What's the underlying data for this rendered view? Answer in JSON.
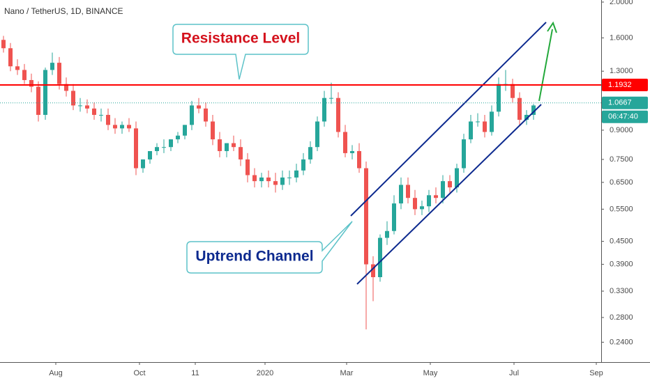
{
  "chart_data": {
    "type": "candlestick",
    "title": "Nano / TetherUS, 1D, BINANCE",
    "log_scale": true,
    "up_color": "#26a69a",
    "down_color": "#ef5350",
    "xlim": [
      -0.5,
      85.7
    ],
    "xticks": [
      {
        "value": 7.5,
        "label": "Aug"
      },
      {
        "value": 19.5,
        "label": "Oct"
      },
      {
        "value": 27.5,
        "label": "11"
      },
      {
        "value": 37.5,
        "label": "2020"
      },
      {
        "value": 49.2,
        "label": "Mar"
      },
      {
        "value": 61.2,
        "label": "May"
      },
      {
        "value": 73.2,
        "label": "Jul"
      },
      {
        "value": 85,
        "label": "Sep"
      }
    ],
    "ylim": [
      0.212,
      2.026
    ],
    "yticks": [
      {
        "value": 2,
        "label": "2.0000"
      },
      {
        "value": 1.6,
        "label": "1.6000"
      },
      {
        "value": 1.3,
        "label": "1.3000"
      },
      {
        "value": 0.9,
        "label": "0.9000"
      },
      {
        "value": 0.75,
        "label": "0.7500"
      },
      {
        "value": 0.65,
        "label": "0.6500"
      },
      {
        "value": 0.55,
        "label": "0.5500"
      },
      {
        "value": 0.45,
        "label": "0.4500"
      },
      {
        "value": 0.39,
        "label": "0.3900"
      },
      {
        "value": 0.33,
        "label": "0.3300"
      },
      {
        "value": 0.28,
        "label": "0.2800"
      },
      {
        "value": 0.24,
        "label": "0.2400"
      }
    ],
    "candles": {
      "open": [
        1.58,
        1.5,
        1.34,
        1.31,
        1.23,
        1.18,
        0.99,
        1.31,
        1.37,
        1.2,
        1.15,
        1.05,
        1.05,
        1.03,
        0.99,
        0.99,
        0.93,
        0.91,
        0.93,
        0.91,
        0.71,
        0.75,
        0.79,
        0.81,
        0.81,
        0.85,
        0.87,
        0.93,
        1.05,
        1.03,
        0.95,
        0.85,
        0.79,
        0.83,
        0.81,
        0.75,
        0.68,
        0.655,
        0.67,
        0.655,
        0.64,
        0.67,
        0.67,
        0.7,
        0.75,
        0.81,
        0.95,
        1.1,
        1.1,
        0.89,
        0.78,
        0.79,
        0.71,
        0.39,
        0.36,
        0.46,
        0.48,
        0.57,
        0.64,
        0.59,
        0.55,
        0.56,
        0.6,
        0.59,
        0.655,
        0.63,
        0.71,
        0.85,
        0.95,
        0.95,
        0.89,
        1.01,
        1.2,
        1.2,
        1.1,
        0.96,
        0.99
      ],
      "high": [
        1.62,
        1.55,
        1.4,
        1.36,
        1.28,
        1.22,
        1.33,
        1.46,
        1.42,
        1.25,
        1.2,
        1.1,
        1.09,
        1.07,
        1.03,
        1.03,
        0.97,
        0.95,
        0.97,
        0.95,
        0.75,
        0.79,
        0.83,
        0.85,
        0.85,
        0.89,
        0.93,
        1.08,
        1.1,
        1.07,
        0.99,
        0.89,
        0.83,
        0.87,
        0.85,
        0.78,
        0.71,
        0.69,
        0.7,
        0.69,
        0.7,
        0.7,
        0.73,
        0.78,
        0.84,
        0.98,
        1.15,
        1.21,
        1.14,
        0.93,
        0.82,
        0.83,
        0.74,
        0.41,
        0.47,
        0.51,
        0.6,
        0.67,
        0.67,
        0.62,
        0.58,
        0.62,
        0.63,
        0.68,
        0.68,
        0.73,
        0.88,
        0.99,
        1.0,
        0.99,
        1.05,
        1.25,
        1.31,
        1.24,
        1.14,
        1.02,
        1.06
      ],
      "low": [
        1.46,
        1.3,
        1.27,
        1.2,
        1.14,
        0.95,
        0.96,
        1.27,
        1.16,
        1.11,
        1.02,
        1.01,
        1.0,
        0.96,
        0.95,
        0.9,
        0.88,
        0.88,
        0.89,
        0.68,
        0.69,
        0.73,
        0.77,
        0.78,
        0.79,
        0.83,
        0.85,
        0.9,
        1.0,
        0.92,
        0.82,
        0.76,
        0.76,
        0.79,
        0.72,
        0.65,
        0.63,
        0.63,
        0.63,
        0.61,
        0.62,
        0.64,
        0.65,
        0.68,
        0.73,
        0.79,
        0.92,
        1.06,
        0.86,
        0.76,
        0.75,
        0.69,
        0.26,
        0.31,
        0.35,
        0.44,
        0.47,
        0.55,
        0.57,
        0.53,
        0.53,
        0.54,
        0.57,
        0.57,
        0.61,
        0.61,
        0.69,
        0.83,
        0.92,
        0.86,
        0.87,
        0.98,
        1.15,
        1.07,
        0.93,
        0.93,
        0.96
      ],
      "close": [
        1.5,
        1.34,
        1.31,
        1.23,
        1.18,
        0.99,
        1.31,
        1.37,
        1.2,
        1.15,
        1.05,
        1.05,
        1.03,
        0.99,
        0.99,
        0.93,
        0.91,
        0.93,
        0.91,
        0.71,
        0.75,
        0.79,
        0.81,
        0.81,
        0.85,
        0.87,
        0.93,
        1.05,
        1.03,
        0.95,
        0.85,
        0.79,
        0.83,
        0.81,
        0.75,
        0.68,
        0.655,
        0.67,
        0.655,
        0.64,
        0.67,
        0.67,
        0.7,
        0.75,
        0.81,
        0.95,
        1.1,
        1.1,
        0.89,
        0.78,
        0.79,
        0.71,
        0.39,
        0.36,
        0.46,
        0.48,
        0.57,
        0.64,
        0.59,
        0.55,
        0.56,
        0.6,
        0.59,
        0.655,
        0.63,
        0.71,
        0.85,
        0.95,
        0.95,
        0.89,
        1.01,
        1.2,
        1.2,
        1.1,
        0.96,
        0.99,
        1.05
      ]
    },
    "price_lines": [
      {
        "value": 1.1932,
        "color": "#ff0000",
        "style": "solid"
      },
      {
        "value": 1.0667,
        "color": "#26a69a",
        "style": "dotted"
      }
    ],
    "countdown": "06:47:40",
    "annotations": {
      "resistance": "Resistance Level",
      "channel": "Uptrend Channel"
    }
  }
}
